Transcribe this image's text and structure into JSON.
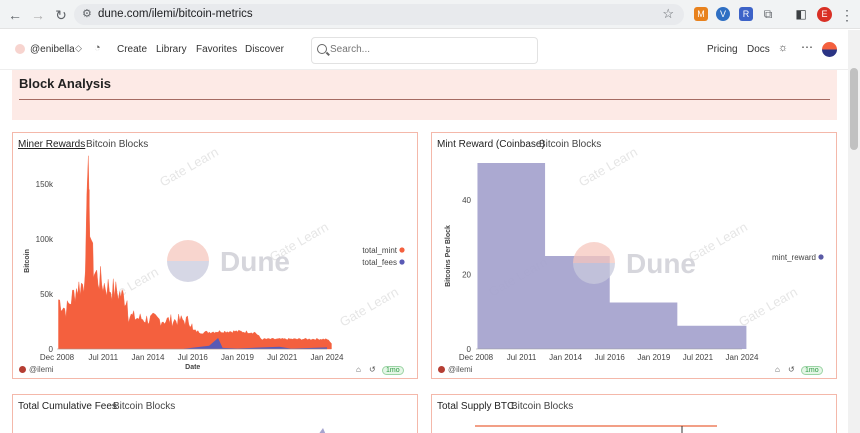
{
  "browser": {
    "url": "dune.com/ilemi/bitcoin-metrics",
    "profile_initial": "E",
    "ext_v": "V"
  },
  "header": {
    "user": "@enibella",
    "nav": [
      "Create",
      "Library",
      "Favorites",
      "Discover"
    ],
    "search_placeholder": "Search...",
    "pricing": "Pricing",
    "docs": "Docs"
  },
  "section": {
    "title": "Block Analysis"
  },
  "panels": {
    "miner": {
      "title": "Miner Rewards",
      "subtitle": "Bitcoin Blocks",
      "author": "@ilemi",
      "age": "1mo"
    },
    "mint": {
      "title": "Mint Reward (Coinbase)",
      "subtitle": "Bitcoin Blocks",
      "author": "@ilemi",
      "age": "1mo"
    },
    "fees": {
      "title": "Total Cumulative Fees",
      "subtitle": "Bitcoin Blocks"
    },
    "supply": {
      "title": "Total Supply BTC",
      "subtitle": "Bitcoin Blocks"
    }
  },
  "watermark": {
    "brand": "Dune",
    "overlay": "Gate Learn"
  },
  "colors": {
    "mint": "#f4603e",
    "fees": "#5a5ab5",
    "reward": "#a6a4cf",
    "panel_border": "#f4b8aa",
    "section_bg": "#fdeae6"
  },
  "chart_data": [
    {
      "type": "area",
      "title": "Miner Rewards",
      "ylabel": "Bitcoin",
      "xlabel": "Date",
      "x_ticks": [
        "Dec 2008",
        "Jul 2011",
        "Jan 2014",
        "Jul 2016",
        "Jan 2019",
        "Jul 2021",
        "Jan 2024"
      ],
      "y_ticks": [
        "0",
        "50k",
        "100k",
        "150k"
      ],
      "ylim": [
        0,
        160000
      ],
      "legend": "right",
      "series": [
        {
          "name": "total_mint",
          "x": [
            "2009-01",
            "2009-06",
            "2010-01",
            "2010-06",
            "2010-09",
            "2010-12",
            "2011-01",
            "2011-06",
            "2011-12",
            "2012-06",
            "2012-11",
            "2012-12",
            "2013-06",
            "2014-01",
            "2014-06",
            "2015-01",
            "2015-06",
            "2016-01",
            "2016-06",
            "2016-07",
            "2017-01",
            "2018-01",
            "2019-01",
            "2020-01",
            "2020-05",
            "2021-01",
            "2022-01",
            "2023-01",
            "2024-01",
            "2024-04"
          ],
          "values": [
            45000,
            35000,
            55000,
            60000,
            145000,
            80000,
            70000,
            60000,
            55000,
            50000,
            45000,
            30000,
            28000,
            27000,
            27000,
            26000,
            26000,
            26000,
            25000,
            17000,
            15000,
            16000,
            16000,
            15000,
            9000,
            9000,
            9000,
            9000,
            9000,
            5000
          ]
        },
        {
          "name": "total_fees",
          "x": [
            "2016-01",
            "2017-06",
            "2017-12",
            "2018-03",
            "2019-01",
            "2021-05",
            "2022-01",
            "2024-01"
          ],
          "values": [
            200,
            3000,
            10000,
            1000,
            500,
            2000,
            300,
            1500
          ]
        }
      ]
    },
    {
      "type": "area",
      "title": "Mint Reward (Coinbase)",
      "ylabel": "Bitcoins Per Block",
      "x_ticks": [
        "Dec 2008",
        "Jul 2011",
        "Jan 2014",
        "Jul 2016",
        "Jan 2019",
        "Jul 2021",
        "Jan 2024"
      ],
      "y_ticks": [
        "0",
        "20",
        "40"
      ],
      "ylim": [
        0,
        50
      ],
      "legend": "right",
      "series": [
        {
          "name": "mint_reward",
          "x": [
            "2009-01",
            "2012-11",
            "2016-07",
            "2020-05",
            "2024-04"
          ],
          "values": [
            50,
            25,
            12.5,
            6.25,
            6.25
          ]
        }
      ]
    }
  ]
}
